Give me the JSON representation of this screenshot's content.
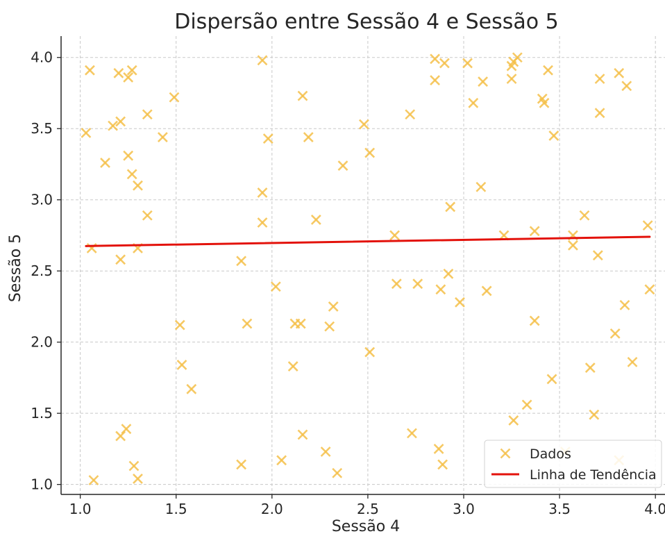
{
  "chart_data": {
    "type": "scatter",
    "title": "Dispersão entre Sessão 4 e Sessão 5",
    "xlabel": "Sessão 4",
    "ylabel": "Sessão 5",
    "xlim": [
      0.9,
      4.05
    ],
    "ylim": [
      0.93,
      4.15
    ],
    "xticks": [
      "1.0",
      "1.5",
      "2.0",
      "2.5",
      "3.0",
      "3.5",
      "4.0"
    ],
    "yticks": [
      "1.0",
      "1.5",
      "2.0",
      "2.5",
      "3.0",
      "3.5",
      "4.0"
    ],
    "grid": true,
    "legend_position": "lower-right",
    "colors": {
      "points": "#F5C04A",
      "trend": "#E3120B"
    },
    "series": [
      {
        "name": "Dados",
        "marker": "x",
        "points": [
          [
            1.03,
            3.47
          ],
          [
            1.05,
            3.91
          ],
          [
            1.06,
            2.66
          ],
          [
            1.07,
            1.03
          ],
          [
            1.13,
            3.26
          ],
          [
            1.17,
            3.52
          ],
          [
            1.2,
            3.89
          ],
          [
            1.21,
            3.55
          ],
          [
            1.21,
            2.58
          ],
          [
            1.21,
            1.34
          ],
          [
            1.24,
            1.39
          ],
          [
            1.25,
            3.31
          ],
          [
            1.25,
            3.86
          ],
          [
            1.27,
            3.91
          ],
          [
            1.27,
            3.18
          ],
          [
            1.28,
            1.13
          ],
          [
            1.3,
            3.1
          ],
          [
            1.3,
            2.66
          ],
          [
            1.3,
            1.04
          ],
          [
            1.35,
            3.6
          ],
          [
            1.35,
            2.89
          ],
          [
            1.43,
            3.44
          ],
          [
            1.49,
            3.72
          ],
          [
            1.52,
            2.12
          ],
          [
            1.53,
            1.84
          ],
          [
            1.58,
            1.67
          ],
          [
            1.84,
            2.57
          ],
          [
            1.84,
            1.14
          ],
          [
            1.87,
            2.13
          ],
          [
            1.95,
            3.98
          ],
          [
            1.95,
            3.05
          ],
          [
            1.95,
            2.84
          ],
          [
            1.98,
            3.43
          ],
          [
            2.02,
            2.39
          ],
          [
            2.05,
            1.17
          ],
          [
            2.11,
            1.83
          ],
          [
            2.12,
            2.13
          ],
          [
            2.15,
            2.13
          ],
          [
            2.16,
            3.73
          ],
          [
            2.16,
            1.35
          ],
          [
            2.19,
            3.44
          ],
          [
            2.23,
            2.86
          ],
          [
            2.28,
            1.23
          ],
          [
            2.3,
            2.11
          ],
          [
            2.32,
            2.25
          ],
          [
            2.34,
            1.08
          ],
          [
            2.37,
            3.24
          ],
          [
            2.48,
            3.53
          ],
          [
            2.51,
            3.33
          ],
          [
            2.51,
            1.93
          ],
          [
            2.64,
            2.75
          ],
          [
            2.65,
            2.41
          ],
          [
            2.72,
            3.6
          ],
          [
            2.73,
            1.36
          ],
          [
            2.76,
            2.41
          ],
          [
            2.85,
            3.99
          ],
          [
            2.85,
            3.84
          ],
          [
            2.87,
            1.25
          ],
          [
            2.88,
            2.37
          ],
          [
            2.89,
            1.14
          ],
          [
            2.9,
            3.96
          ],
          [
            2.92,
            2.48
          ],
          [
            2.93,
            2.95
          ],
          [
            2.98,
            2.28
          ],
          [
            3.02,
            3.96
          ],
          [
            3.05,
            3.68
          ],
          [
            3.09,
            3.09
          ],
          [
            3.1,
            3.83
          ],
          [
            3.12,
            2.36
          ],
          [
            3.21,
            2.75
          ],
          [
            3.25,
            3.94
          ],
          [
            3.25,
            3.85
          ],
          [
            3.26,
            3.97
          ],
          [
            3.26,
            1.45
          ],
          [
            3.28,
            4.0
          ],
          [
            3.33,
            1.56
          ],
          [
            3.37,
            2.78
          ],
          [
            3.37,
            2.15
          ],
          [
            3.41,
            3.71
          ],
          [
            3.42,
            3.68
          ],
          [
            3.44,
            3.91
          ],
          [
            3.46,
            1.74
          ],
          [
            3.47,
            3.45
          ],
          [
            3.53,
            1.23
          ],
          [
            3.57,
            2.75
          ],
          [
            3.57,
            2.68
          ],
          [
            3.63,
            2.89
          ],
          [
            3.66,
            1.82
          ],
          [
            3.68,
            1.49
          ],
          [
            3.7,
            2.61
          ],
          [
            3.71,
            3.85
          ],
          [
            3.71,
            3.61
          ],
          [
            3.79,
            2.06
          ],
          [
            3.81,
            3.89
          ],
          [
            3.81,
            1.17
          ],
          [
            3.84,
            2.26
          ],
          [
            3.85,
            3.8
          ],
          [
            3.88,
            1.86
          ],
          [
            3.96,
            2.82
          ],
          [
            3.97,
            2.37
          ]
        ]
      },
      {
        "name": "Linha de Tendência",
        "type": "line",
        "x": [
          1.03,
          3.97
        ],
        "y": [
          2.675,
          2.74
        ]
      }
    ]
  }
}
